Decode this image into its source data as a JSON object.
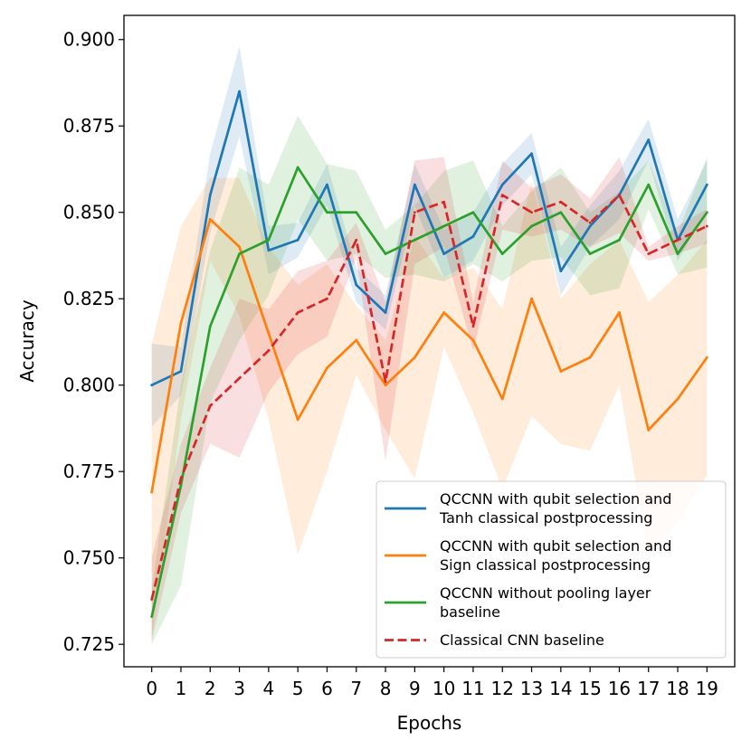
{
  "chart_data": {
    "type": "line",
    "xlabel": "Epochs",
    "ylabel": "Accuracy",
    "x": [
      0,
      1,
      2,
      3,
      4,
      5,
      6,
      7,
      8,
      9,
      10,
      11,
      12,
      13,
      14,
      15,
      16,
      17,
      18,
      19
    ],
    "xticks": [
      "0",
      "1",
      "2",
      "3",
      "4",
      "5",
      "6",
      "7",
      "8",
      "9",
      "10",
      "11",
      "12",
      "13",
      "14",
      "15",
      "16",
      "17",
      "18",
      "19"
    ],
    "xlim": [
      -0.95,
      19.95
    ],
    "ylim": [
      0.7185,
      0.907
    ],
    "yticks": [
      "0.725",
      "0.750",
      "0.775",
      "0.800",
      "0.825",
      "0.850",
      "0.875",
      "0.900"
    ],
    "ytick_values": [
      0.725,
      0.75,
      0.775,
      0.8,
      0.825,
      0.85,
      0.875,
      0.9
    ],
    "grid": false,
    "legend_position": "lower right",
    "series": [
      {
        "name": "QCCNN with qubit selection and Tanh classical postprocessing",
        "legend_lines": [
          "QCCNN with qubit selection and",
          "Tanh classical postprocessing"
        ],
        "color": "#1f77b4",
        "dash": false,
        "values": [
          0.8,
          0.804,
          0.855,
          0.885,
          0.839,
          0.842,
          0.858,
          0.829,
          0.821,
          0.858,
          0.838,
          0.843,
          0.858,
          0.867,
          0.833,
          0.846,
          0.855,
          0.871,
          0.842,
          0.858
        ],
        "lower": [
          0.788,
          0.797,
          0.844,
          0.872,
          0.832,
          0.837,
          0.852,
          0.824,
          0.816,
          0.852,
          0.831,
          0.836,
          0.852,
          0.861,
          0.826,
          0.84,
          0.848,
          0.865,
          0.836,
          0.851
        ],
        "upper": [
          0.812,
          0.811,
          0.867,
          0.898,
          0.846,
          0.847,
          0.864,
          0.834,
          0.826,
          0.864,
          0.845,
          0.85,
          0.864,
          0.873,
          0.84,
          0.852,
          0.862,
          0.877,
          0.848,
          0.865
        ]
      },
      {
        "name": "QCCNN with qubit selection and Sign classical postprocessing",
        "legend_lines": [
          "QCCNN with qubit selection and",
          "Sign classical postprocessing"
        ],
        "color": "#ff7f0e",
        "dash": false,
        "values": [
          0.769,
          0.818,
          0.848,
          0.84,
          0.815,
          0.79,
          0.805,
          0.813,
          0.8,
          0.808,
          0.821,
          0.813,
          0.796,
          0.825,
          0.804,
          0.808,
          0.821,
          0.787,
          0.796,
          0.808
        ],
        "lower": [
          0.727,
          0.79,
          0.836,
          0.82,
          0.79,
          0.751,
          0.775,
          0.803,
          0.787,
          0.773,
          0.811,
          0.792,
          0.77,
          0.791,
          0.783,
          0.781,
          0.8,
          0.75,
          0.76,
          0.774
        ],
        "upper": [
          0.812,
          0.846,
          0.86,
          0.86,
          0.84,
          0.829,
          0.835,
          0.823,
          0.813,
          0.843,
          0.831,
          0.834,
          0.822,
          0.859,
          0.825,
          0.835,
          0.842,
          0.824,
          0.832,
          0.842
        ]
      },
      {
        "name": "QCCNN without pooling layer baseline",
        "legend_lines": [
          "QCCNN without pooling layer",
          "baseline"
        ],
        "color": "#2ca02c",
        "dash": false,
        "values": [
          0.733,
          0.771,
          0.817,
          0.838,
          0.842,
          0.863,
          0.85,
          0.85,
          0.838,
          0.842,
          0.846,
          0.85,
          0.838,
          0.846,
          0.85,
          0.838,
          0.842,
          0.858,
          0.838,
          0.85
        ],
        "lower": [
          0.725,
          0.742,
          0.795,
          0.813,
          0.826,
          0.848,
          0.836,
          0.838,
          0.831,
          0.832,
          0.83,
          0.835,
          0.83,
          0.836,
          0.837,
          0.826,
          0.828,
          0.851,
          0.832,
          0.834
        ],
        "upper": [
          0.741,
          0.8,
          0.839,
          0.863,
          0.858,
          0.878,
          0.864,
          0.862,
          0.845,
          0.852,
          0.862,
          0.865,
          0.846,
          0.856,
          0.863,
          0.85,
          0.856,
          0.865,
          0.844,
          0.866
        ]
      },
      {
        "name": "Classical CNN baseline",
        "legend_lines": [
          "Classical CNN baseline"
        ],
        "color": "#d62728",
        "dash": true,
        "values": [
          0.738,
          0.773,
          0.794,
          0.802,
          0.81,
          0.821,
          0.825,
          0.842,
          0.801,
          0.85,
          0.853,
          0.817,
          0.855,
          0.85,
          0.853,
          0.847,
          0.855,
          0.838,
          0.842,
          0.846
        ],
        "lower": [
          0.726,
          0.763,
          0.783,
          0.779,
          0.798,
          0.809,
          0.814,
          0.837,
          0.778,
          0.835,
          0.84,
          0.81,
          0.845,
          0.843,
          0.845,
          0.84,
          0.844,
          0.836,
          0.838,
          0.841
        ],
        "upper": [
          0.75,
          0.783,
          0.805,
          0.825,
          0.822,
          0.833,
          0.836,
          0.847,
          0.824,
          0.865,
          0.866,
          0.824,
          0.865,
          0.857,
          0.861,
          0.854,
          0.866,
          0.84,
          0.846,
          0.851
        ]
      }
    ]
  }
}
